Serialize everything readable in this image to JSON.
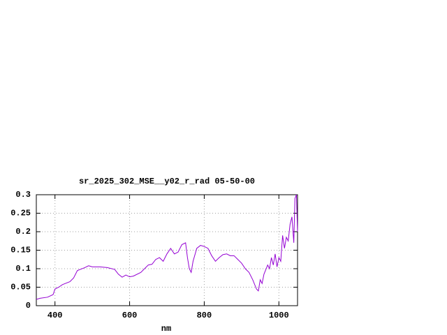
{
  "chart_data": {
    "type": "line",
    "title": "sr_2025_302_MSE__y02_r_rad 05-50-00",
    "x_label": "nm",
    "x": [
      350,
      360,
      380,
      395,
      400,
      410,
      420,
      440,
      450,
      460,
      480,
      490,
      500,
      520,
      540,
      560,
      570,
      580,
      590,
      600,
      610,
      630,
      640,
      650,
      660,
      670,
      680,
      690,
      700,
      710,
      720,
      730,
      740,
      750,
      755,
      760,
      765,
      770,
      780,
      790,
      800,
      810,
      820,
      830,
      840,
      850,
      860,
      870,
      880,
      890,
      900,
      910,
      920,
      930,
      940,
      945,
      950,
      955,
      960,
      970,
      975,
      980,
      985,
      990,
      995,
      1000,
      1005,
      1010,
      1015,
      1020,
      1025,
      1030,
      1035,
      1040,
      1043,
      1047,
      1050
    ],
    "series": [
      {
        "color": "#9400d3",
        "values": [
          0.017,
          0.02,
          0.023,
          0.03,
          0.045,
          0.05,
          0.057,
          0.065,
          0.075,
          0.095,
          0.103,
          0.108,
          0.105,
          0.105,
          0.103,
          0.098,
          0.085,
          0.077,
          0.083,
          0.078,
          0.08,
          0.09,
          0.1,
          0.11,
          0.112,
          0.125,
          0.13,
          0.12,
          0.14,
          0.155,
          0.14,
          0.145,
          0.165,
          0.17,
          0.13,
          0.1,
          0.09,
          0.12,
          0.155,
          0.163,
          0.16,
          0.155,
          0.135,
          0.12,
          0.13,
          0.138,
          0.14,
          0.135,
          0.135,
          0.125,
          0.115,
          0.1,
          0.09,
          0.07,
          0.045,
          0.04,
          0.07,
          0.06,
          0.085,
          0.11,
          0.1,
          0.13,
          0.11,
          0.14,
          0.105,
          0.13,
          0.12,
          0.19,
          0.155,
          0.185,
          0.175,
          0.22,
          0.24,
          0.17,
          0.29,
          0.3,
          0.2
        ]
      }
    ],
    "xlim": [
      350,
      1050
    ],
    "xticks": [
      400,
      600,
      800,
      1000
    ],
    "ylim": [
      0,
      0.3
    ],
    "yticks": [
      0,
      0.05,
      0.1,
      0.15,
      0.2,
      0.25,
      0.3
    ],
    "grid": true
  }
}
